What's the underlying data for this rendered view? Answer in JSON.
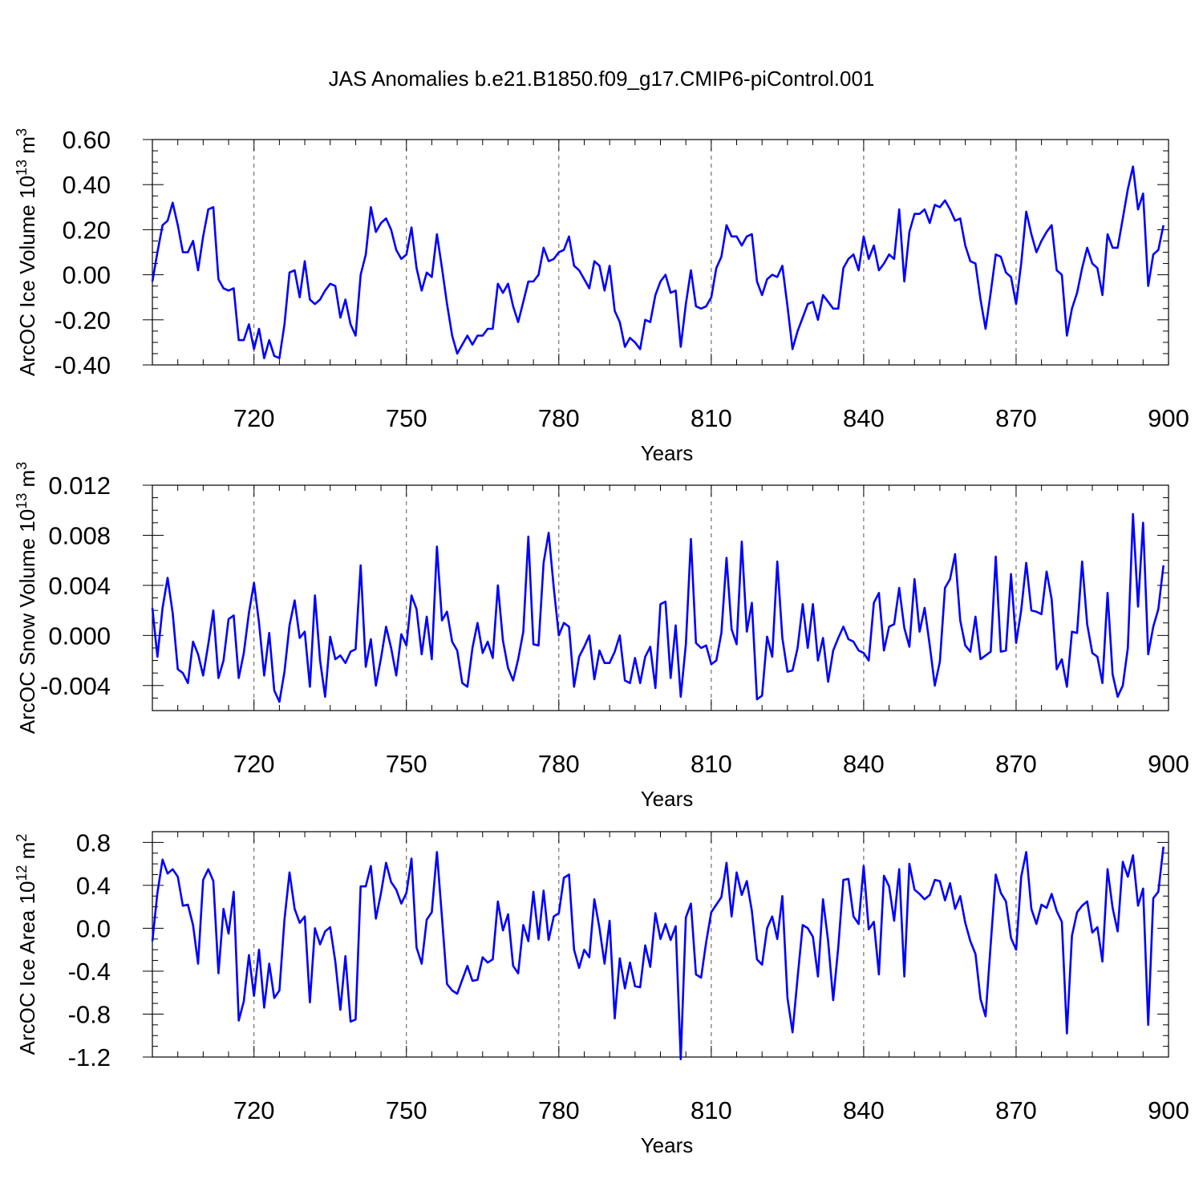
{
  "title": "JAS Anomalies b.e21.B1850.f09_g17.CMIP6-piControl.001",
  "colors": {
    "line": "#0000ff",
    "axis": "#000000",
    "grid": "#555555"
  },
  "chart_data": [
    {
      "type": "line",
      "ylabel": "ArcOC Ice Volume 10",
      "ylabel_sup": "13",
      "ylabel_unit": " m",
      "ylabel_unit_sup": "3",
      "xlabel": "Years",
      "xlim": [
        700,
        900
      ],
      "ylim": [
        -0.4,
        0.6
      ],
      "x_ticks": [
        720,
        750,
        780,
        810,
        840,
        870,
        900
      ],
      "y_ticks": [
        -0.4,
        -0.2,
        0.0,
        0.2,
        0.4,
        0.6
      ],
      "y_tick_labels": [
        "-0.40",
        "-0.20",
        "0.00",
        "0.20",
        "0.40",
        "0.60"
      ],
      "y_minor_step": 0.05,
      "x_start": 700,
      "values": [
        -0.03,
        0.1,
        0.22,
        0.24,
        0.32,
        0.22,
        0.1,
        0.1,
        0.15,
        0.02,
        0.17,
        0.29,
        0.3,
        -0.02,
        -0.06,
        -0.07,
        -0.06,
        -0.29,
        -0.29,
        -0.22,
        -0.33,
        -0.24,
        -0.37,
        -0.29,
        -0.36,
        -0.37,
        -0.22,
        0.01,
        0.02,
        -0.1,
        0.06,
        -0.11,
        -0.13,
        -0.11,
        -0.07,
        -0.04,
        -0.05,
        -0.19,
        -0.11,
        -0.22,
        -0.27,
        -0.0,
        0.09,
        0.3,
        0.19,
        0.23,
        0.25,
        0.2,
        0.11,
        0.07,
        0.09,
        0.21,
        0.03,
        -0.07,
        0.01,
        -0.01,
        0.18,
        0.03,
        -0.13,
        -0.27,
        -0.35,
        -0.31,
        -0.27,
        -0.31,
        -0.27,
        -0.27,
        -0.24,
        -0.24,
        -0.04,
        -0.08,
        -0.04,
        -0.14,
        -0.21,
        -0.12,
        -0.03,
        -0.03,
        0.0,
        0.12,
        0.06,
        0.07,
        0.1,
        0.11,
        0.17,
        0.04,
        0.02,
        -0.02,
        -0.06,
        0.06,
        0.04,
        -0.07,
        0.04,
        -0.16,
        -0.21,
        -0.32,
        -0.28,
        -0.3,
        -0.33,
        -0.2,
        -0.21,
        -0.09,
        -0.03,
        0.0,
        -0.08,
        -0.07,
        -0.32,
        -0.13,
        0.02,
        -0.14,
        -0.15,
        -0.14,
        -0.1,
        0.03,
        0.08,
        0.22,
        0.17,
        0.17,
        0.13,
        0.17,
        0.18,
        -0.03,
        -0.09,
        -0.02,
        0.0,
        -0.01,
        0.04,
        -0.14,
        -0.33,
        -0.25,
        -0.19,
        -0.13,
        -0.12,
        -0.2,
        -0.09,
        -0.12,
        -0.15,
        -0.15,
        0.03,
        0.07,
        0.09,
        0.02,
        0.17,
        0.07,
        0.13,
        0.02,
        0.05,
        0.09,
        0.07,
        0.29,
        -0.03,
        0.19,
        0.27,
        0.27,
        0.29,
        0.23,
        0.31,
        0.3,
        0.33,
        0.29,
        0.24,
        0.25,
        0.13,
        0.06,
        0.05,
        -0.11,
        -0.24,
        -0.08,
        0.09,
        0.08,
        0.01,
        -0.01,
        -0.13,
        0.05,
        0.28,
        0.18,
        0.1,
        0.15,
        0.19,
        0.22,
        0.02,
        0.0,
        -0.27,
        -0.15,
        -0.08,
        0.03,
        0.12,
        0.05,
        0.03,
        -0.09,
        0.18,
        0.12,
        0.12,
        0.25,
        0.38,
        0.48,
        0.29,
        0.36,
        -0.05,
        0.09,
        0.11,
        0.22
      ]
    },
    {
      "type": "line",
      "ylabel": "ArcOC Snow Volume 10",
      "ylabel_sup": "13",
      "ylabel_unit": " m",
      "ylabel_unit_sup": "3",
      "xlabel": "Years",
      "xlim": [
        700,
        900
      ],
      "ylim": [
        -0.006,
        0.012
      ],
      "x_ticks": [
        720,
        750,
        780,
        810,
        840,
        870,
        900
      ],
      "y_ticks": [
        -0.004,
        0.0,
        0.004,
        0.008,
        0.012
      ],
      "y_tick_labels": [
        "-0.004",
        "0.000",
        "0.004",
        "0.008",
        "0.012"
      ],
      "y_minor_step": 0.001,
      "x_start": 700,
      "values": [
        0.0022,
        -0.0017,
        0.0022,
        0.0046,
        0.0018,
        -0.0027,
        -0.003,
        -0.0038,
        -0.0005,
        -0.0015,
        -0.0032,
        -0.0007,
        0.002,
        -0.0034,
        -0.002,
        0.0013,
        0.0016,
        -0.0034,
        -0.0014,
        0.0018,
        0.0042,
        0.001,
        -0.0032,
        0.0002,
        -0.0044,
        -0.0053,
        -0.0029,
        0.0008,
        0.0028,
        -0.0002,
        0.0003,
        -0.0041,
        0.0032,
        -0.002,
        -0.0049,
        -0.0001,
        -0.0019,
        -0.0016,
        -0.0022,
        -0.0013,
        -0.0011,
        0.0056,
        -0.0025,
        -0.0003,
        -0.004,
        -0.0018,
        0.0007,
        -0.001,
        -0.0032,
        0.0001,
        -0.0008,
        0.0032,
        0.0021,
        -0.0015,
        0.0015,
        -0.0019,
        0.0071,
        0.0012,
        0.0019,
        -0.0005,
        -0.0012,
        -0.0038,
        -0.0041,
        -0.001,
        0.001,
        -0.0014,
        -0.0005,
        -0.0018,
        0.004,
        -0.0004,
        -0.0026,
        -0.0036,
        -0.0019,
        0.0003,
        0.0079,
        -0.0007,
        -0.0008,
        0.0058,
        0.0082,
        0.0038,
        0.0,
        0.001,
        0.0007,
        -0.0041,
        -0.0017,
        -0.0009,
        0.0,
        -0.0035,
        -0.0012,
        -0.0022,
        -0.0022,
        -0.0013,
        0.0,
        -0.0036,
        -0.0038,
        -0.0018,
        -0.0038,
        -0.0017,
        -0.0009,
        -0.0042,
        0.0025,
        0.0027,
        -0.0034,
        0.0008,
        -0.0049,
        -0.0007,
        0.0077,
        -0.0006,
        -0.001,
        -0.0008,
        -0.0023,
        -0.002,
        0.0002,
        0.0062,
        0.0005,
        -0.0007,
        0.0075,
        0.0003,
        0.0026,
        -0.0051,
        -0.0048,
        -0.0001,
        -0.0017,
        0.0059,
        -0.0002,
        -0.0029,
        -0.0028,
        -0.001,
        0.0025,
        -0.001,
        0.0025,
        -0.002,
        -0.0002,
        -0.0037,
        -0.0012,
        -0.0002,
        0.0007,
        -0.0003,
        -0.0005,
        -0.0012,
        -0.0014,
        -0.002,
        0.0026,
        0.0034,
        -0.0012,
        0.0007,
        0.0009,
        0.0038,
        0.0006,
        -0.0009,
        0.0045,
        0.0003,
        0.0022,
        -0.0008,
        -0.004,
        -0.0021,
        0.0038,
        0.0045,
        0.0065,
        0.0012,
        -0.0008,
        -0.0013,
        0.0015,
        -0.0019,
        -0.0016,
        -0.0013,
        0.0063,
        -0.0013,
        -0.0012,
        0.0049,
        -0.0006,
        0.002,
        0.0058,
        0.002,
        0.0019,
        0.0017,
        0.0051,
        0.0029,
        -0.0027,
        -0.0019,
        -0.0041,
        0.0003,
        0.0002,
        0.0059,
        0.0009,
        -0.0014,
        -0.0017,
        -0.0038,
        0.0034,
        -0.0031,
        -0.0049,
        -0.004,
        -0.001,
        0.0097,
        0.0023,
        0.009,
        -0.0015,
        0.0007,
        0.0021,
        0.0056
      ]
    },
    {
      "type": "line",
      "ylabel": "ArcOC Ice Area 10",
      "ylabel_sup": "12",
      "ylabel_unit": " m",
      "ylabel_unit_sup": "2",
      "xlabel": "Years",
      "xlim": [
        700,
        900
      ],
      "ylim": [
        -1.2,
        0.9
      ],
      "x_ticks": [
        720,
        750,
        780,
        810,
        840,
        870,
        900
      ],
      "y_ticks": [
        -1.2,
        -0.8,
        -0.4,
        0.0,
        0.4,
        0.8
      ],
      "y_tick_labels": [
        "-1.2",
        "-0.8",
        "-0.4",
        "0.0",
        "0.4",
        "0.8"
      ],
      "y_minor_step": 0.1,
      "x_start": 700,
      "values": [
        -0.12,
        0.33,
        0.64,
        0.51,
        0.55,
        0.48,
        0.21,
        0.22,
        0.03,
        -0.33,
        0.45,
        0.55,
        0.44,
        -0.42,
        0.18,
        -0.05,
        0.34,
        -0.86,
        -0.68,
        -0.25,
        -0.63,
        -0.2,
        -0.74,
        -0.33,
        -0.65,
        -0.58,
        0.08,
        0.52,
        0.18,
        0.05,
        0.11,
        -0.69,
        0.0,
        -0.15,
        -0.03,
        0.01,
        -0.31,
        -0.76,
        -0.26,
        -0.87,
        -0.85,
        0.39,
        0.39,
        0.58,
        0.09,
        0.33,
        0.61,
        0.43,
        0.36,
        0.23,
        0.33,
        0.65,
        -0.18,
        -0.33,
        0.08,
        0.15,
        0.71,
        0.1,
        -0.52,
        -0.58,
        -0.61,
        -0.48,
        -0.35,
        -0.49,
        -0.48,
        -0.27,
        -0.32,
        -0.29,
        0.25,
        -0.02,
        0.13,
        -0.35,
        -0.42,
        0.03,
        -0.12,
        0.34,
        -0.1,
        0.35,
        -0.11,
        0.11,
        0.14,
        0.47,
        0.5,
        -0.2,
        -0.37,
        -0.2,
        -0.27,
        0.27,
        0.0,
        -0.33,
        0.07,
        -0.84,
        -0.28,
        -0.56,
        -0.32,
        -0.54,
        -0.55,
        -0.16,
        -0.36,
        0.14,
        -0.1,
        0.04,
        -0.11,
        0.02,
        -1.22,
        0.1,
        0.23,
        -0.43,
        -0.46,
        -0.13,
        0.15,
        0.22,
        0.29,
        0.61,
        0.11,
        0.52,
        0.31,
        0.44,
        0.16,
        -0.29,
        -0.34,
        0.0,
        0.11,
        -0.1,
        0.3,
        -0.65,
        -0.97,
        -0.46,
        0.03,
        0.0,
        -0.08,
        -0.45,
        0.27,
        -0.12,
        -0.67,
        -0.18,
        0.45,
        0.46,
        0.11,
        0.04,
        0.58,
        -0.01,
        0.06,
        -0.43,
        0.49,
        0.39,
        0.07,
        0.55,
        -0.45,
        0.6,
        0.36,
        0.32,
        0.27,
        0.31,
        0.45,
        0.44,
        0.26,
        0.42,
        0.18,
        0.3,
        0.05,
        -0.12,
        -0.24,
        -0.66,
        -0.82,
        -0.15,
        0.5,
        0.33,
        0.25,
        -0.09,
        -0.2,
        0.48,
        0.71,
        0.18,
        0.04,
        0.22,
        0.19,
        0.32,
        0.16,
        0.06,
        -0.98,
        -0.07,
        0.15,
        0.21,
        0.25,
        -0.04,
        0.01,
        -0.31,
        0.55,
        0.19,
        -0.03,
        0.62,
        0.48,
        0.68,
        0.21,
        0.37,
        -0.9,
        0.28,
        0.34,
        0.76
      ]
    }
  ]
}
